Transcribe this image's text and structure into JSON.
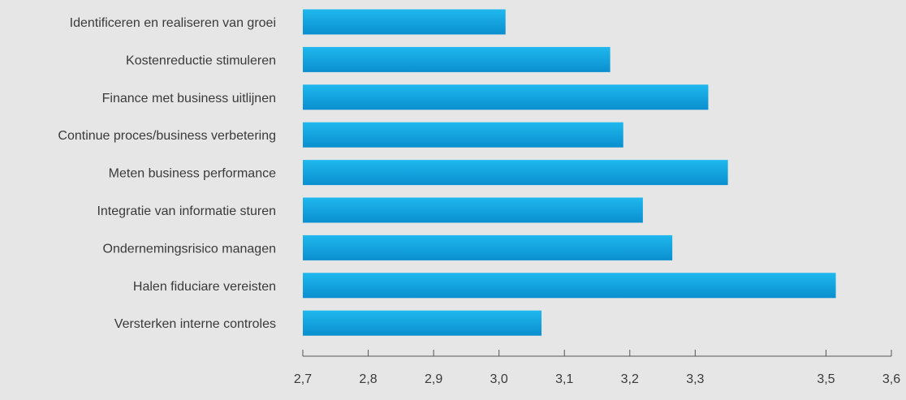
{
  "chart_data": {
    "type": "bar",
    "orientation": "horizontal",
    "title": "",
    "xlabel": "",
    "ylabel": "",
    "categories": [
      "Identificeren en realiseren van groei",
      "Kostenreductie stimuleren",
      "Finance met business uitlijnen",
      "Continue proces/business verbetering",
      "Meten business performance",
      "Integratie van informatie sturen",
      "Ondernemingsrisico managen",
      "Halen fiduciare vereisten",
      "Versterken interne controles"
    ],
    "values": [
      3.01,
      3.17,
      3.32,
      3.19,
      3.35,
      3.22,
      3.265,
      3.515,
      3.065
    ],
    "xlim": [
      2.7,
      3.6
    ],
    "xticks": [
      2.7,
      2.8,
      2.9,
      3.0,
      3.1,
      3.2,
      3.3,
      3.5,
      3.6
    ],
    "xtick_labels": [
      "2,7",
      "2,8",
      "2,9",
      "3,0",
      "3,1",
      "3,2",
      "3,3",
      "3,5",
      "3,6"
    ],
    "grid": false,
    "bar_color_top": "#1fb8ee",
    "bar_color_bottom": "#0a8fcf"
  }
}
